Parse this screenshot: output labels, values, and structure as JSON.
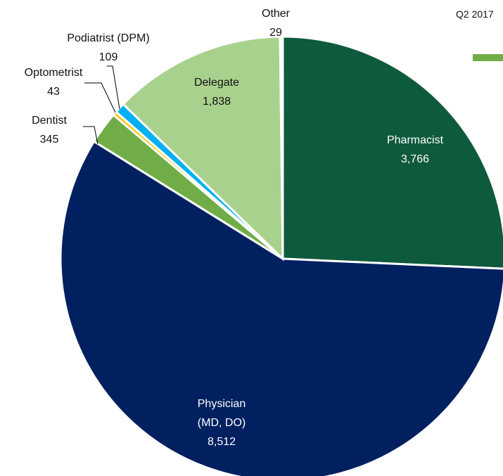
{
  "chart_data": {
    "type": "pie",
    "legend_title": "Q2 2017",
    "categories": [
      "Pharmacist",
      "Physician (MD, DO)",
      "Dentist",
      "Optometrist",
      "Podiatrist (DPM)",
      "Delegate",
      "Other"
    ],
    "values": [
      3766,
      8512,
      345,
      43,
      109,
      1838,
      29
    ],
    "value_labels": [
      "3,766",
      "8,512",
      "345",
      "43",
      "109",
      "1,838",
      "29"
    ],
    "colors": [
      "#0e5a3c",
      "#002060",
      "#70ad47",
      "#ffc000",
      "#00b0f0",
      "#a9d18e",
      "#f2f2f2"
    ]
  }
}
